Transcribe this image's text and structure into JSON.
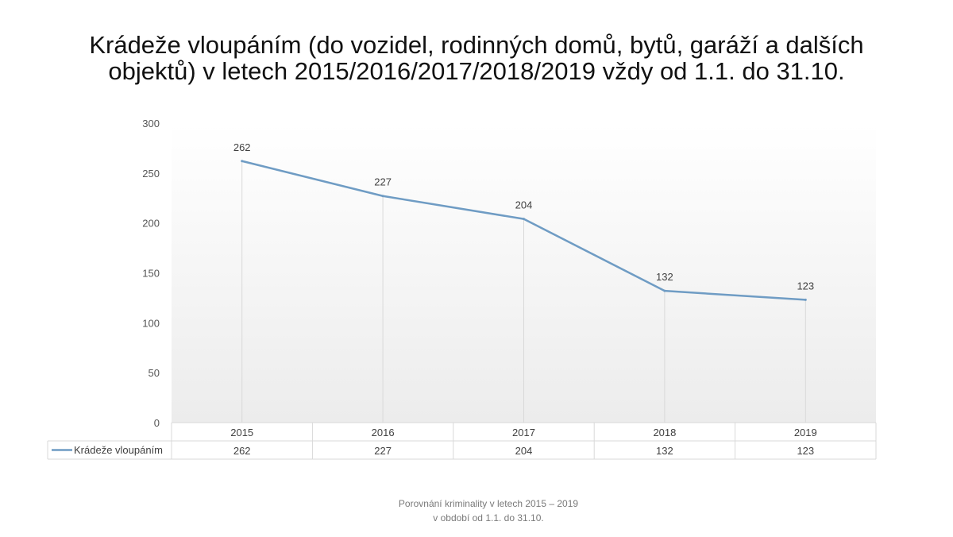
{
  "title": "Krádeže vloupáním (do vozidel, rodinných domů, bytů, garáží a dalších objektů) v letech 2015/2016/2017/2018/2019 vždy od 1.1. do 31.10.",
  "footer": {
    "line1": "Porovnání kriminality v letech 2015 – 2019",
    "line2": "v období od 1.1. do 31.10."
  },
  "colors": {
    "series": "#6f9cc4",
    "gridline": "#d9d9d9",
    "axis_text": "#555555",
    "table_border": "#d9d9d9",
    "plot_gradient_top": "#ffffff",
    "plot_gradient_bottom": "#ececec"
  },
  "chart_data": {
    "type": "line",
    "title": "",
    "categories": [
      "2015",
      "2016",
      "2017",
      "2018",
      "2019"
    ],
    "series": [
      {
        "name": "Krádeže vloupáním",
        "values": [
          262,
          227,
          204,
          132,
          123
        ]
      }
    ],
    "data_labels": true,
    "ylim": [
      0,
      300
    ],
    "yticks": [
      0,
      50,
      100,
      150,
      200,
      250,
      300
    ],
    "grid": "vertical drop lines at categories",
    "legend": "data table below chart",
    "data_table": true
  }
}
